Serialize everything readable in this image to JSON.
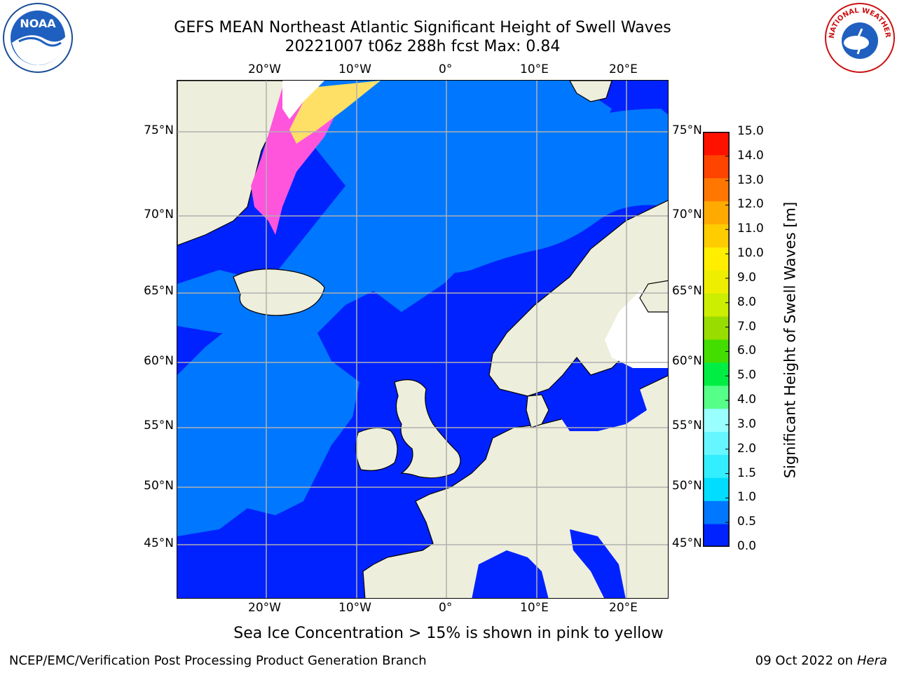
{
  "title_line1": "GEFS MEAN Northeast Atlantic Significant Height of Swell Waves",
  "title_line2": "20221007 t06z 288h fcst   Max: 0.84",
  "logos": {
    "noaa_text": "NOAA",
    "nws_text": "NATIONAL WEATHER SERVICE"
  },
  "map": {
    "lon_ticks": [
      "20°W",
      "10°W",
      "0°",
      "10°E",
      "20°E"
    ],
    "lat_ticks": [
      "75°N",
      "70°N",
      "65°N",
      "60°N",
      "55°N",
      "50°N",
      "45°N"
    ],
    "lon_values": [
      -20,
      -10,
      0,
      10,
      20
    ],
    "lat_values": [
      75,
      70,
      65,
      60,
      55,
      50,
      45
    ],
    "colors": {
      "ocean_low": "#0022ff",
      "ocean_mid": "#0077ff",
      "land": "#eeeedc",
      "grid": "#b0b0b0",
      "ice_pink": "#ff55dd",
      "ice_yellow": "#ffe066"
    }
  },
  "colorbar": {
    "title": "Significant Height of Swell Waves [m]",
    "tick_labels": [
      "15.0",
      "14.0",
      "13.0",
      "12.0",
      "11.0",
      "10.0",
      "9.0",
      "8.0",
      "7.0",
      "6.0",
      "5.0",
      "4.0",
      "3.0",
      "2.0",
      "1.5",
      "1.0",
      "0.5",
      "0.0"
    ],
    "bin_colors": [
      "#0022ff",
      "#0077ff",
      "#00ddff",
      "#33eeff",
      "#66f6ff",
      "#99ffff",
      "#55ff88",
      "#00ee44",
      "#44dd00",
      "#99dd00",
      "#ccee00",
      "#eeee00",
      "#ffee00",
      "#ffcc00",
      "#ffaa00",
      "#ff7700",
      "#ff4400",
      "#ff1100"
    ]
  },
  "caption": "Sea Ice Concentration > 15% is shown in pink to yellow",
  "footer_left": "NCEP/EMC/Verification Post Processing Product Generation Branch",
  "footer_right_prefix": "09 Oct 2022 on ",
  "footer_right_host": "Hera"
}
